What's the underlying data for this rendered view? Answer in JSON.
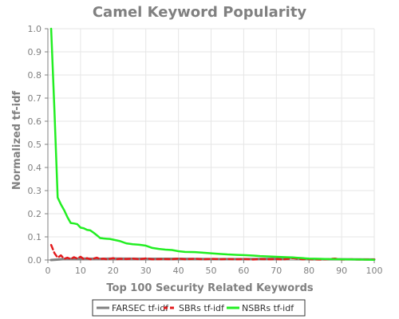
{
  "chart_data": {
    "type": "line",
    "title": "Camel Keyword Popularity",
    "xlabel": "Top 100 Security Related Keywords",
    "ylabel": "Normalized tf-idf",
    "xlim": [
      0,
      100
    ],
    "ylim": [
      0,
      1.0
    ],
    "xticks": [
      0,
      10,
      20,
      30,
      40,
      50,
      60,
      70,
      80,
      90,
      100
    ],
    "yticks": [
      0.0,
      0.1,
      0.2,
      0.3,
      0.4,
      0.5,
      0.6,
      0.7,
      0.8,
      0.9,
      1.0
    ],
    "ytick_labels": [
      "0.0",
      "0.1",
      "0.2",
      "0.3",
      "0.4",
      "0.5",
      "0.6",
      "0.7",
      "0.8",
      "0.9",
      "1.0"
    ],
    "grid": true,
    "legend_position": "bottom",
    "series": [
      {
        "name": "FARSEC tf-idf",
        "color": "#808080",
        "style": "solid",
        "points": [
          [
            1,
            0.0
          ],
          [
            5,
            0.004
          ],
          [
            10,
            0.006
          ],
          [
            15,
            0.005
          ],
          [
            20,
            0.006
          ],
          [
            30,
            0.005
          ],
          [
            40,
            0.005
          ],
          [
            50,
            0.004
          ],
          [
            60,
            0.004
          ],
          [
            70,
            0.005
          ],
          [
            75,
            0.01
          ],
          [
            80,
            0.003
          ],
          [
            90,
            0.003
          ],
          [
            100,
            0.002
          ]
        ]
      },
      {
        "name": "SBRs tf-idf",
        "color": "#e31a1c",
        "style": "dashed",
        "points": [
          [
            1,
            0.065
          ],
          [
            2,
            0.03
          ],
          [
            3,
            0.01
          ],
          [
            4,
            0.02
          ],
          [
            5,
            0.005
          ],
          [
            6,
            0.01
          ],
          [
            7,
            0.004
          ],
          [
            8,
            0.012
          ],
          [
            9,
            0.006
          ],
          [
            10,
            0.014
          ],
          [
            11,
            0.004
          ],
          [
            12,
            0.008
          ],
          [
            13,
            0.003
          ],
          [
            14,
            0.006
          ],
          [
            15,
            0.01
          ],
          [
            16,
            0.004
          ],
          [
            17,
            0.006
          ],
          [
            18,
            0.003
          ],
          [
            19,
            0.005
          ],
          [
            20,
            0.008
          ],
          [
            21,
            0.003
          ],
          [
            22,
            0.005
          ],
          [
            24,
            0.004
          ],
          [
            26,
            0.006
          ],
          [
            28,
            0.003
          ],
          [
            30,
            0.007
          ],
          [
            32,
            0.003
          ],
          [
            35,
            0.004
          ],
          [
            38,
            0.003
          ],
          [
            40,
            0.006
          ],
          [
            42,
            0.003
          ],
          [
            45,
            0.005
          ],
          [
            48,
            0.003
          ],
          [
            50,
            0.005
          ],
          [
            53,
            0.003
          ],
          [
            55,
            0.004
          ],
          [
            58,
            0.003
          ],
          [
            60,
            0.004
          ],
          [
            63,
            0.002
          ],
          [
            65,
            0.004
          ],
          [
            68,
            0.003
          ],
          [
            70,
            0.004
          ],
          [
            72,
            0.002
          ],
          [
            75,
            0.008
          ],
          [
            78,
            0.003
          ],
          [
            80,
            0.004
          ],
          [
            83,
            0.002
          ],
          [
            85,
            0.003
          ],
          [
            88,
            0.006
          ],
          [
            90,
            0.002
          ],
          [
            93,
            0.003
          ],
          [
            95,
            0.002
          ],
          [
            100,
            0.002
          ]
        ]
      },
      {
        "name": "NSBRs tf-idf",
        "color": "#22ee22",
        "style": "solid",
        "points": [
          [
            1,
            1.0
          ],
          [
            2,
            0.65
          ],
          [
            3,
            0.27
          ],
          [
            4,
            0.24
          ],
          [
            5,
            0.215
          ],
          [
            6,
            0.185
          ],
          [
            7,
            0.16
          ],
          [
            8,
            0.158
          ],
          [
            9,
            0.155
          ],
          [
            10,
            0.14
          ],
          [
            11,
            0.137
          ],
          [
            12,
            0.13
          ],
          [
            13,
            0.128
          ],
          [
            14,
            0.118
          ],
          [
            15,
            0.107
          ],
          [
            16,
            0.095
          ],
          [
            17,
            0.093
          ],
          [
            18,
            0.092
          ],
          [
            19,
            0.091
          ],
          [
            20,
            0.088
          ],
          [
            22,
            0.082
          ],
          [
            24,
            0.072
          ],
          [
            26,
            0.068
          ],
          [
            28,
            0.066
          ],
          [
            30,
            0.062
          ],
          [
            32,
            0.052
          ],
          [
            34,
            0.048
          ],
          [
            36,
            0.045
          ],
          [
            38,
            0.043
          ],
          [
            40,
            0.038
          ],
          [
            42,
            0.035
          ],
          [
            45,
            0.034
          ],
          [
            48,
            0.031
          ],
          [
            50,
            0.029
          ],
          [
            53,
            0.026
          ],
          [
            55,
            0.024
          ],
          [
            58,
            0.022
          ],
          [
            60,
            0.021
          ],
          [
            63,
            0.019
          ],
          [
            65,
            0.017
          ],
          [
            68,
            0.015
          ],
          [
            70,
            0.014
          ],
          [
            73,
            0.012
          ],
          [
            75,
            0.011
          ],
          [
            78,
            0.008
          ],
          [
            80,
            0.006
          ],
          [
            83,
            0.005
          ],
          [
            86,
            0.004
          ],
          [
            90,
            0.003
          ],
          [
            95,
            0.002
          ],
          [
            100,
            0.001
          ]
        ]
      }
    ]
  }
}
